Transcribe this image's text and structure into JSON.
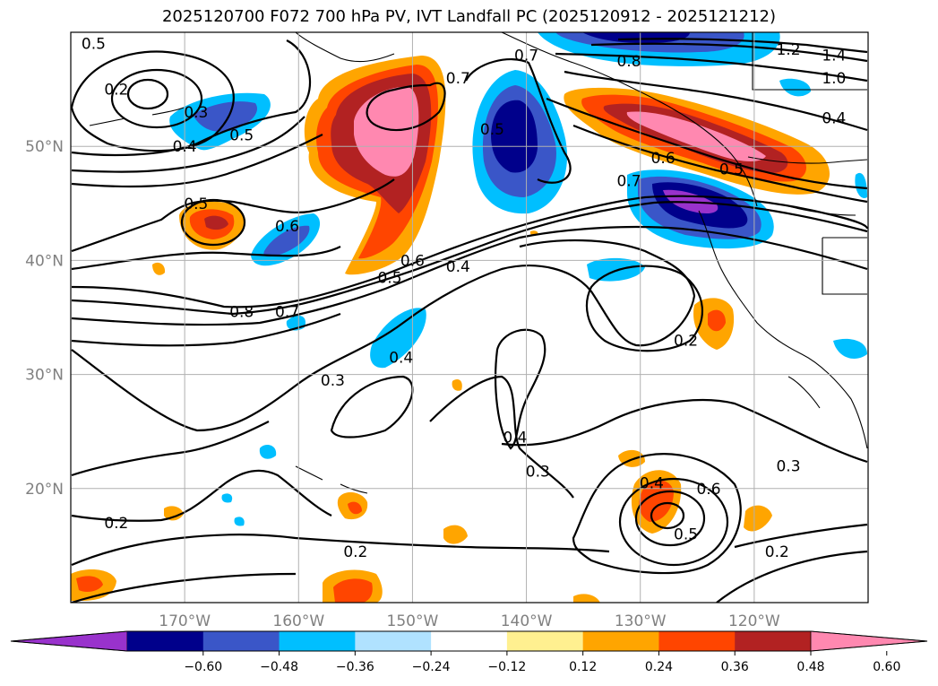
{
  "title": "2025120700 F072 700 hPa PV, IVT Landfall PC (2025120912 - 2025121212)",
  "map": {
    "projection": "PlateCarree",
    "lon_range": [
      -180,
      -110
    ],
    "lat_range": [
      10,
      60
    ],
    "lon_ticks": [
      {
        "value": -170,
        "label": "170°W"
      },
      {
        "value": -160,
        "label": "160°W"
      },
      {
        "value": -150,
        "label": "150°W"
      },
      {
        "value": -140,
        "label": "140°W"
      },
      {
        "value": -130,
        "label": "130°W"
      },
      {
        "value": -120,
        "label": "120°W"
      }
    ],
    "lat_ticks": [
      {
        "value": 50,
        "label": "50°N"
      },
      {
        "value": 40,
        "label": "40°N"
      },
      {
        "value": 30,
        "label": "30°N"
      },
      {
        "value": 20,
        "label": "20°N"
      }
    ],
    "gridlines": true
  },
  "contour_labels": [
    {
      "text": "0.5",
      "lon": -178,
      "lat": 59
    },
    {
      "text": "0.2",
      "lon": -176,
      "lat": 55
    },
    {
      "text": "0.3",
      "lon": -169,
      "lat": 53
    },
    {
      "text": "0.5",
      "lon": -165,
      "lat": 51
    },
    {
      "text": "0.4",
      "lon": -170,
      "lat": 50
    },
    {
      "text": "0.5",
      "lon": -169,
      "lat": 45
    },
    {
      "text": "0.6",
      "lon": -161,
      "lat": 43
    },
    {
      "text": "0.7",
      "lon": -146,
      "lat": 56
    },
    {
      "text": "0.7",
      "lon": -140,
      "lat": 58
    },
    {
      "text": "0.5",
      "lon": -143,
      "lat": 51.5
    },
    {
      "text": "0.8",
      "lon": -131,
      "lat": 57.5
    },
    {
      "text": "1.2",
      "lon": -117,
      "lat": 58.5
    },
    {
      "text": "1.4",
      "lon": -113,
      "lat": 58
    },
    {
      "text": "1.0",
      "lon": -113,
      "lat": 56
    },
    {
      "text": "0.4",
      "lon": -113,
      "lat": 52.5
    },
    {
      "text": "0.6",
      "lon": -128,
      "lat": 49
    },
    {
      "text": "0.5",
      "lon": -122,
      "lat": 48
    },
    {
      "text": "0.7",
      "lon": -131,
      "lat": 47
    },
    {
      "text": "0.6",
      "lon": -150,
      "lat": 40
    },
    {
      "text": "0.5",
      "lon": -152,
      "lat": 38.5
    },
    {
      "text": "0.4",
      "lon": -146,
      "lat": 39.5
    },
    {
      "text": "0.8",
      "lon": -165,
      "lat": 35.5
    },
    {
      "text": "0.7",
      "lon": -161,
      "lat": 35.5
    },
    {
      "text": "0.4",
      "lon": -151,
      "lat": 31.5
    },
    {
      "text": "0.3",
      "lon": -157,
      "lat": 29.5
    },
    {
      "text": "0.2",
      "lon": -126,
      "lat": 33
    },
    {
      "text": "0.4",
      "lon": -141,
      "lat": 24.5
    },
    {
      "text": "0.3",
      "lon": -139,
      "lat": 21.5
    },
    {
      "text": "0.4",
      "lon": -129,
      "lat": 20.5
    },
    {
      "text": "0.6",
      "lon": -124,
      "lat": 20
    },
    {
      "text": "0.5",
      "lon": -126,
      "lat": 16
    },
    {
      "text": "0.3",
      "lon": -117,
      "lat": 22
    },
    {
      "text": "0.2",
      "lon": -176,
      "lat": 17
    },
    {
      "text": "0.2",
      "lon": -155,
      "lat": 14.5
    },
    {
      "text": "0.2",
      "lon": -118,
      "lat": 14.5
    }
  ],
  "colorbar": {
    "colors": [
      "#9932cc",
      "#00008b",
      "#3a56c8",
      "#00bfff",
      "#b0e2ff",
      "#ffffff",
      "#fff090",
      "#ffa500",
      "#ff4500",
      "#b22222",
      "#ff88b0"
    ],
    "ticks": [
      "−0.60",
      "−0.48",
      "−0.36",
      "−0.24",
      "−0.12",
      "0.12",
      "0.24",
      "0.36",
      "0.48",
      "0.60"
    ]
  }
}
